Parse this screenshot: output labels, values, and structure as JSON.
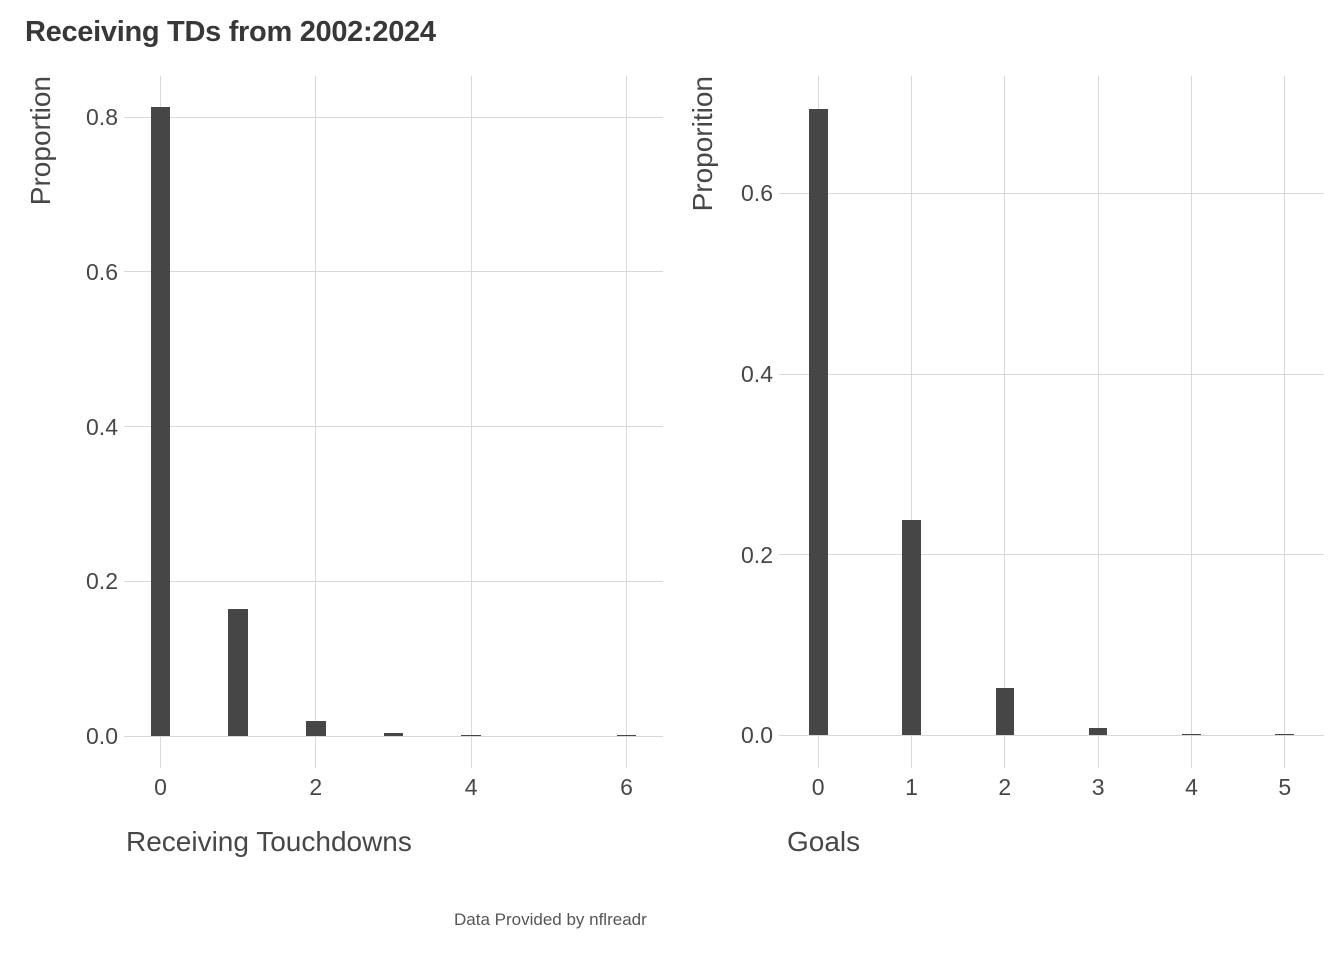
{
  "title": "Receiving TDs from 2002:2024",
  "caption": "Data Provided by nflreadr",
  "colors": {
    "background": "#ffffff",
    "bar": "#464646",
    "gridline": "#d8d8d8",
    "title_text": "#383838",
    "axis_text": "#474747",
    "caption_text": "#565656"
  },
  "chart_data": [
    {
      "type": "bar",
      "panel": "left",
      "xlabel": "Receiving Touchdowns",
      "ylabel": "Proportion",
      "x": [
        0,
        1,
        2,
        3,
        4,
        5,
        6
      ],
      "values": [
        0.813,
        0.164,
        0.02,
        0.004,
        0.001,
        0,
        0.001
      ],
      "x_ticks": [
        0,
        2,
        4,
        6
      ],
      "y_ticks": [
        0.0,
        0.2,
        0.4,
        0.6,
        0.8
      ],
      "xlim": [
        -0.47,
        6.47
      ],
      "ylim": [
        -0.041,
        0.853
      ],
      "bar_width": 0.25,
      "grid": "major-only",
      "legend": "none"
    },
    {
      "type": "bar",
      "panel": "right",
      "xlabel": "Goals",
      "ylabel": "Proporition",
      "x": [
        0,
        1,
        2,
        3,
        4,
        5
      ],
      "values": [
        0.693,
        0.239,
        0.053,
        0.008,
        0.001,
        0.001
      ],
      "x_ticks": [
        0,
        1,
        2,
        3,
        4,
        5
      ],
      "y_ticks": [
        0.0,
        0.2,
        0.4,
        0.6
      ],
      "xlim": [
        -0.42,
        5.42
      ],
      "ylim": [
        -0.036,
        0.73
      ],
      "bar_width": 0.2,
      "grid": "major-only",
      "legend": "none"
    }
  ]
}
